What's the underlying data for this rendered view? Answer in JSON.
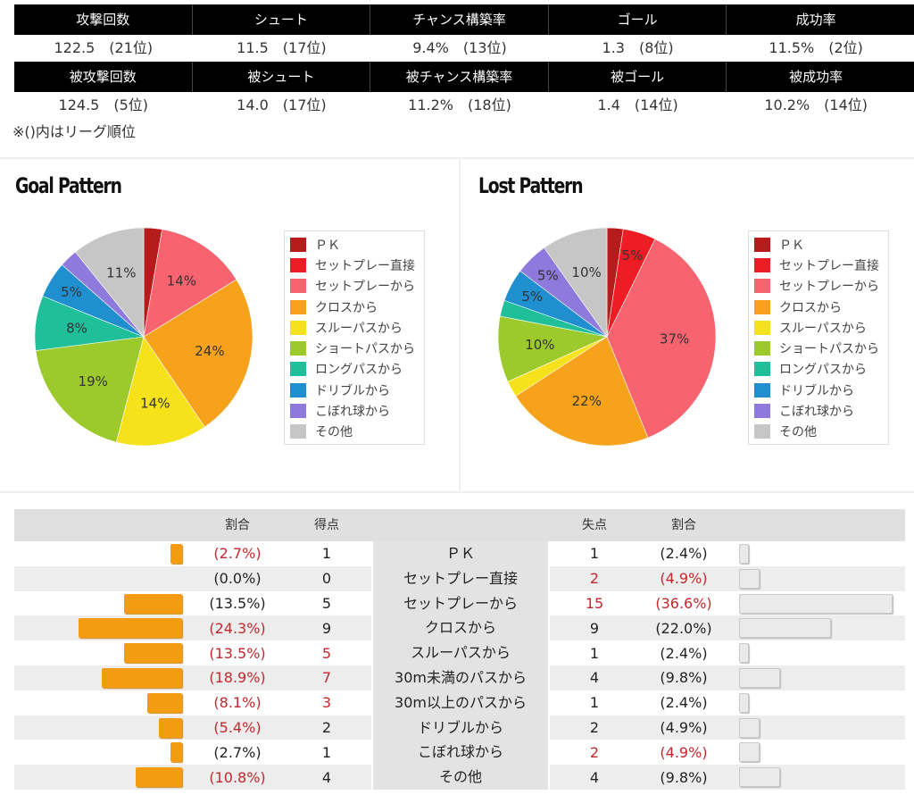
{
  "stats": {
    "row1_headers": [
      "攻撃回数",
      "シュート",
      "チャンス構築率",
      "ゴール",
      "成功率"
    ],
    "row1_values": [
      "122.5　(21位)",
      "11.5　(17位)",
      "9.4%　(13位)",
      "1.3　(8位)",
      "11.5%　(2位)"
    ],
    "row2_headers": [
      "被攻撃回数",
      "被シュート",
      "被チャンス構築率",
      "被ゴール",
      "被成功率"
    ],
    "row2_values": [
      "124.5　(5位)",
      "14.0　(17位)",
      "11.2%　(18位)",
      "1.4　(14位)",
      "10.2%　(14位)"
    ],
    "note": "※()内はリーグ順位"
  },
  "legend_labels": [
    "ＰＫ",
    "セットプレー直接",
    "セットプレーから",
    "クロスから",
    "スルーパスから",
    "ショートパスから",
    "ロングパスから",
    "ドリブルから",
    "こぼれ球から",
    "その他"
  ],
  "legend_colors": [
    "#b71c1c",
    "#ee1c25",
    "#f7636f",
    "#f7a21b",
    "#f6e21a",
    "#9cc92b",
    "#1fbf9a",
    "#1f8fd0",
    "#8e79dc",
    "#c6c6c6"
  ],
  "comparison": {
    "headers": {
      "l_pct": "割合",
      "l_val": "得点",
      "r_val": "失点",
      "r_pct": "割合"
    },
    "rows": [
      {
        "cat": "ＰＫ",
        "l_pct": "(2.7%)",
        "l_val": "1",
        "r_val": "1",
        "r_pct": "(2.4%)",
        "l_red": true,
        "lv_red": false,
        "rv_red": false,
        "r_red": false,
        "l_frac": 2.7,
        "r_frac": 2.4
      },
      {
        "cat": "セットプレー直接",
        "l_pct": "(0.0%)",
        "l_val": "0",
        "r_val": "2",
        "r_pct": "(4.9%)",
        "l_red": false,
        "lv_red": false,
        "rv_red": true,
        "r_red": true,
        "l_frac": 0,
        "r_frac": 4.9
      },
      {
        "cat": "セットプレーから",
        "l_pct": "(13.5%)",
        "l_val": "5",
        "r_val": "15",
        "r_pct": "(36.6%)",
        "l_red": false,
        "lv_red": false,
        "rv_red": true,
        "r_red": true,
        "l_frac": 13.5,
        "r_frac": 36.6
      },
      {
        "cat": "クロスから",
        "l_pct": "(24.3%)",
        "l_val": "9",
        "r_val": "9",
        "r_pct": "(22.0%)",
        "l_red": true,
        "lv_red": false,
        "rv_red": false,
        "r_red": false,
        "l_frac": 24.3,
        "r_frac": 22.0
      },
      {
        "cat": "スルーパスから",
        "l_pct": "(13.5%)",
        "l_val": "5",
        "r_val": "1",
        "r_pct": "(2.4%)",
        "l_red": true,
        "lv_red": true,
        "rv_red": false,
        "r_red": false,
        "l_frac": 13.5,
        "r_frac": 2.4
      },
      {
        "cat": "30m未満のパスから",
        "l_pct": "(18.9%)",
        "l_val": "7",
        "r_val": "4",
        "r_pct": "(9.8%)",
        "l_red": true,
        "lv_red": true,
        "rv_red": false,
        "r_red": false,
        "l_frac": 18.9,
        "r_frac": 9.8
      },
      {
        "cat": "30m以上のパスから",
        "l_pct": "(8.1%)",
        "l_val": "3",
        "r_val": "1",
        "r_pct": "(2.4%)",
        "l_red": true,
        "lv_red": true,
        "rv_red": false,
        "r_red": false,
        "l_frac": 8.1,
        "r_frac": 2.4
      },
      {
        "cat": "ドリブルから",
        "l_pct": "(5.4%)",
        "l_val": "2",
        "r_val": "2",
        "r_pct": "(4.9%)",
        "l_red": true,
        "lv_red": false,
        "rv_red": false,
        "r_red": false,
        "l_frac": 5.4,
        "r_frac": 4.9
      },
      {
        "cat": "こぼれ球から",
        "l_pct": "(2.7%)",
        "l_val": "1",
        "r_val": "2",
        "r_pct": "(4.9%)",
        "l_red": false,
        "lv_red": false,
        "rv_red": true,
        "r_red": true,
        "l_frac": 2.7,
        "r_frac": 4.9
      },
      {
        "cat": "その他",
        "l_pct": "(10.8%)",
        "l_val": "4",
        "r_val": "4",
        "r_pct": "(9.8%)",
        "l_red": true,
        "lv_red": false,
        "rv_red": false,
        "r_red": false,
        "l_frac": 10.8,
        "r_frac": 9.8
      }
    ]
  },
  "chart_data": [
    {
      "type": "pie",
      "title": "Goal Pattern",
      "categories": [
        "ＰＫ",
        "セットプレー直接",
        "セットプレーから",
        "クロスから",
        "スルーパスから",
        "ショートパスから",
        "ロングパスから",
        "ドリブルから",
        "こぼれ球から",
        "その他"
      ],
      "values": [
        2.7,
        0.0,
        13.5,
        24.3,
        13.5,
        18.9,
        8.1,
        5.4,
        2.7,
        10.8
      ],
      "data_labels": [
        "",
        "",
        "14%",
        "24%",
        "14%",
        "19%",
        "8%",
        "5%",
        "",
        "11%"
      ]
    },
    {
      "type": "pie",
      "title": "Lost Pattern",
      "categories": [
        "ＰＫ",
        "セットプレー直接",
        "セットプレーから",
        "クロスから",
        "スルーパスから",
        "ショートパスから",
        "ロングパスから",
        "ドリブルから",
        "こぼれ球から",
        "その他"
      ],
      "values": [
        2.4,
        4.9,
        36.6,
        22.0,
        2.4,
        9.8,
        2.4,
        4.9,
        4.9,
        9.8
      ],
      "data_labels": [
        "",
        "5%",
        "37%",
        "22%",
        "",
        "10%",
        "",
        "5%",
        "5%",
        "10%"
      ]
    }
  ]
}
